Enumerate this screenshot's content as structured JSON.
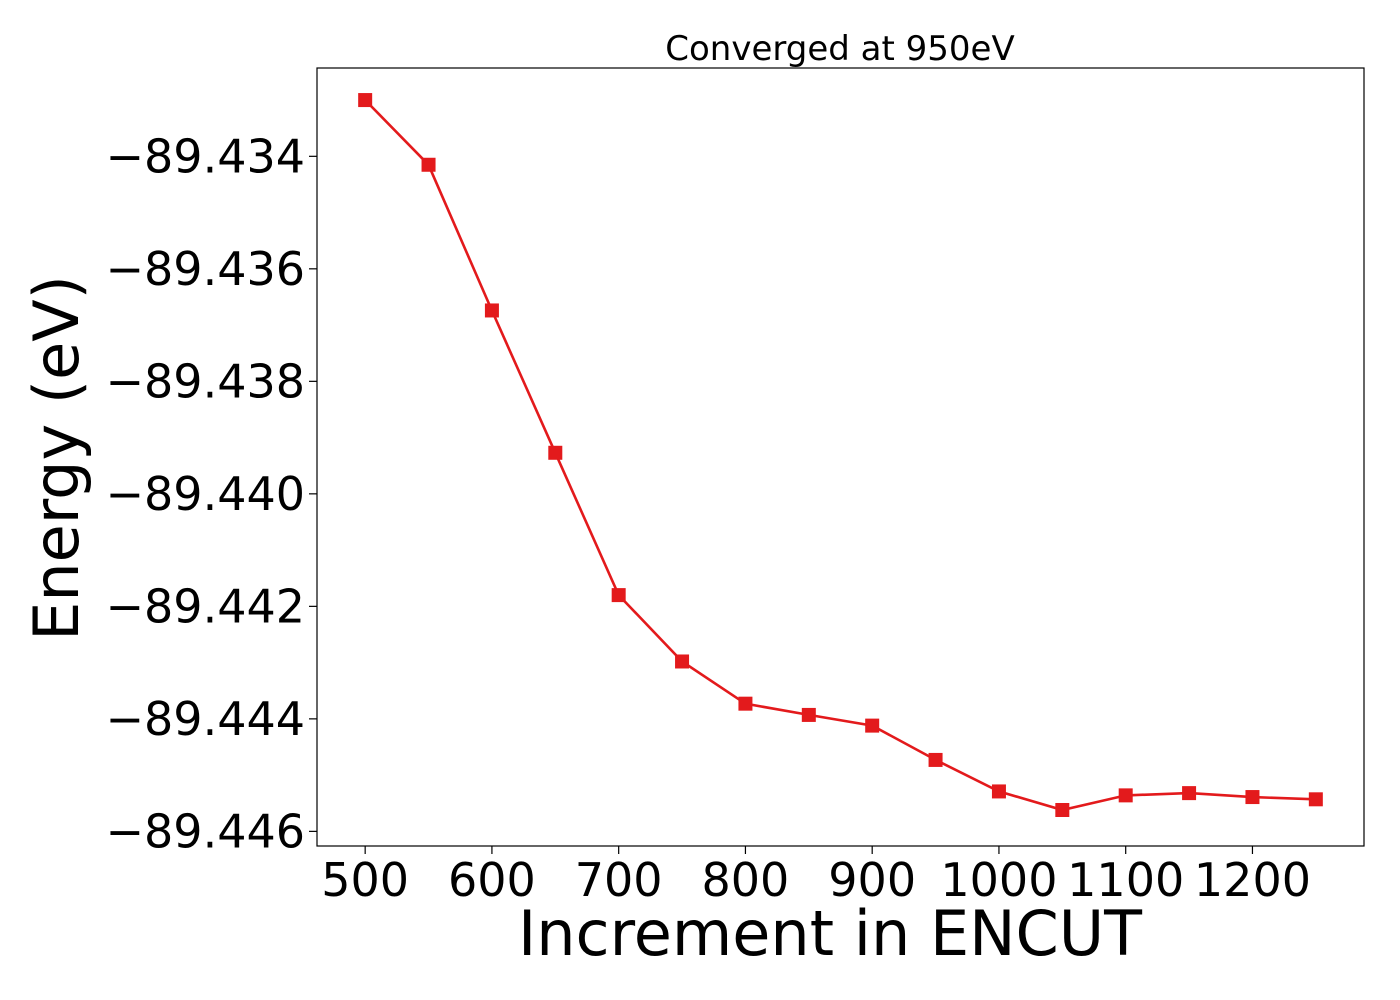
{
  "chart_data": {
    "type": "line",
    "title": "Converged at 950eV",
    "xlabel": "Increment in ENCUT",
    "ylabel": "Energy (eV)",
    "xlim": [
      462,
      1288
    ],
    "ylim": [
      -89.44626,
      -89.43243
    ],
    "x_ticks": [
      500,
      600,
      700,
      800,
      900,
      1000,
      1100,
      1200
    ],
    "x_tick_labels": [
      "500",
      "600",
      "700",
      "800",
      "900",
      "1000",
      "1100",
      "1200"
    ],
    "y_ticks": [
      -89.434,
      -89.436,
      -89.438,
      -89.44,
      -89.442,
      -89.444,
      -89.446
    ],
    "y_tick_labels": [
      "−89.434",
      "−89.436",
      "−89.438",
      "−89.440",
      "−89.442",
      "−89.444",
      "−89.446"
    ],
    "grid": false,
    "series": [
      {
        "color": "#e31a1c",
        "marker": "square",
        "x": [
          500,
          550,
          600,
          650,
          700,
          750,
          800,
          850,
          900,
          950,
          1000,
          1050,
          1100,
          1150,
          1200,
          1250
        ],
        "y": [
          -89.433,
          -89.43415,
          -89.43674,
          -89.43927,
          -89.4418,
          -89.44298,
          -89.44373,
          -89.44393,
          -89.44412,
          -89.44473,
          -89.44529,
          -89.44562,
          -89.44536,
          -89.44532,
          -89.44539,
          -89.44543
        ]
      }
    ]
  }
}
